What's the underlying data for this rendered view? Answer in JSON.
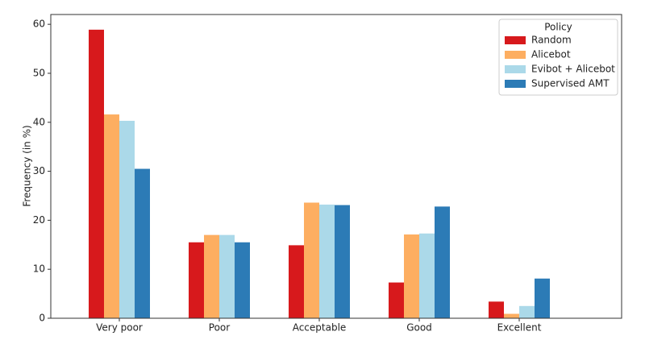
{
  "chart_data": {
    "type": "bar",
    "y_label": "Frequency (in %)",
    "categories": [
      "Very poor",
      "Poor",
      "Acceptable",
      "Good",
      "Excellent"
    ],
    "series": [
      {
        "name": "Random",
        "color": "#d7191c",
        "values": [
          58.9,
          15.5,
          14.9,
          7.3,
          3.4
        ]
      },
      {
        "name": "Alicebot",
        "color": "#fdae61",
        "values": [
          41.6,
          17.0,
          23.6,
          17.1,
          0.9
        ]
      },
      {
        "name": "Evibot + Alicebot",
        "color": "#abd9e9",
        "values": [
          40.3,
          17.0,
          23.2,
          17.3,
          2.5
        ]
      },
      {
        "name": "Supervised AMT",
        "color": "#2c7bb6",
        "values": [
          30.5,
          15.5,
          23.1,
          22.8,
          8.1
        ]
      }
    ],
    "ylim": [
      0,
      62
    ],
    "yticks": [
      0,
      10,
      20,
      30,
      40,
      50,
      60
    ],
    "legend_title": "Policy",
    "legend": "upper right"
  }
}
